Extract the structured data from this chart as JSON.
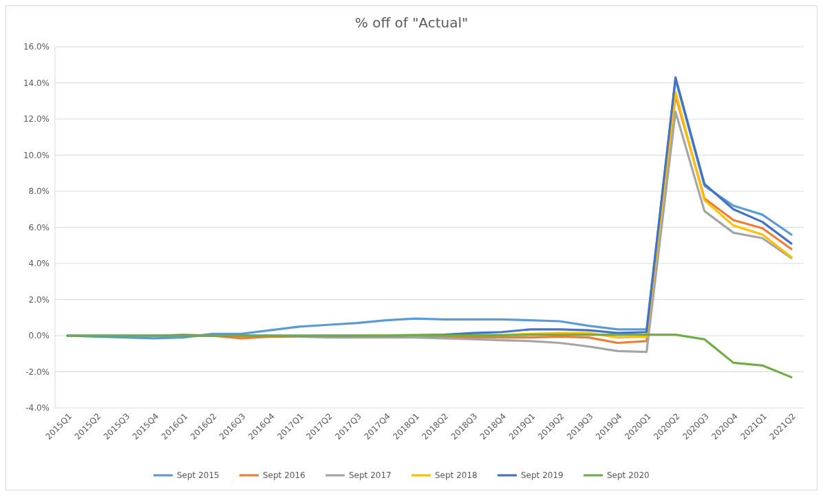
{
  "chart_data": {
    "type": "line",
    "title": "% off of \"Actual\"",
    "categories": [
      "2015Q1",
      "2015Q2",
      "2015Q3",
      "2015Q4",
      "2016Q1",
      "2016Q2",
      "2016Q3",
      "2016Q4",
      "2017Q1",
      "2017Q2",
      "2017Q3",
      "2017Q4",
      "2018Q1",
      "2018Q2",
      "2018Q3",
      "2018Q4",
      "2019Q1",
      "2019Q2",
      "2019Q3",
      "2019Q4",
      "2020Q1",
      "2020Q2",
      "2020Q3",
      "2020Q4",
      "2021Q1",
      "2021Q2"
    ],
    "series": [
      {
        "name": "Sept 2015",
        "color": "#5b9bd5",
        "values": [
          0,
          -0.05,
          -0.1,
          -0.15,
          -0.1,
          0.1,
          0.1,
          0.3,
          0.5,
          0.6,
          0.7,
          0.85,
          0.95,
          0.9,
          0.9,
          0.9,
          0.85,
          0.8,
          0.55,
          0.35,
          0.35,
          14.2,
          8.3,
          7.2,
          6.7,
          5.6
        ]
      },
      {
        "name": "Sept 2016",
        "color": "#ed7d31",
        "values": [
          null,
          null,
          null,
          0,
          0.05,
          0,
          -0.15,
          -0.05,
          -0.05,
          0,
          0,
          0,
          0,
          -0.05,
          -0.1,
          -0.1,
          -0.1,
          -0.05,
          -0.1,
          -0.4,
          -0.3,
          13.3,
          7.6,
          6.4,
          5.95,
          4.8
        ]
      },
      {
        "name": "Sept 2017",
        "color": "#a5a5a5",
        "values": [
          0,
          0,
          0,
          0,
          0,
          0,
          0,
          0,
          -0.05,
          -0.1,
          -0.1,
          -0.1,
          -0.1,
          -0.15,
          -0.2,
          -0.25,
          -0.3,
          -0.4,
          -0.6,
          -0.85,
          -0.9,
          12.4,
          6.9,
          5.7,
          5.4,
          4.3
        ]
      },
      {
        "name": "Sept 2018",
        "color": "#ffc000",
        "values": [
          null,
          null,
          null,
          null,
          null,
          null,
          null,
          null,
          null,
          null,
          0,
          0.02,
          0.05,
          0.05,
          0.05,
          0.05,
          0.1,
          0.15,
          0.15,
          -0.1,
          -0.05,
          13.5,
          7.5,
          6.1,
          5.6,
          4.35
        ]
      },
      {
        "name": "Sept 2019",
        "color": "#4472c4",
        "values": [
          0,
          0,
          0,
          0,
          0,
          0,
          0,
          0,
          0,
          0,
          0,
          0,
          0.02,
          0.05,
          0.15,
          0.2,
          0.35,
          0.35,
          0.3,
          0.15,
          0.2,
          14.3,
          8.4,
          7.0,
          6.3,
          5.1
        ]
      },
      {
        "name": "Sept 2020",
        "color": "#70ad47",
        "values": [
          0,
          0,
          0,
          0,
          0,
          0,
          0,
          0,
          0,
          0,
          0,
          0,
          0.02,
          0.02,
          0.02,
          0.02,
          0.05,
          0.05,
          0.05,
          0.05,
          0.05,
          0.05,
          -0.2,
          -1.5,
          -1.65,
          -2.3
        ]
      }
    ],
    "ylim": [
      -4,
      16
    ],
    "yticks": [
      {
        "value": -4,
        "label": "-4.0%"
      },
      {
        "value": -2,
        "label": "-2.0%"
      },
      {
        "value": 0,
        "label": "0.0%"
      },
      {
        "value": 2,
        "label": "2.0%"
      },
      {
        "value": 4,
        "label": "4.0%"
      },
      {
        "value": 6,
        "label": "6.0%"
      },
      {
        "value": 8,
        "label": "8.0%"
      },
      {
        "value": 10,
        "label": "10.0%"
      },
      {
        "value": 12,
        "label": "12.0%"
      },
      {
        "value": 14,
        "label": "14.0%"
      },
      {
        "value": 16,
        "label": "16.0%"
      }
    ],
    "grid": "y",
    "legend": "bottom",
    "marker": "none",
    "line_style": "solid"
  }
}
